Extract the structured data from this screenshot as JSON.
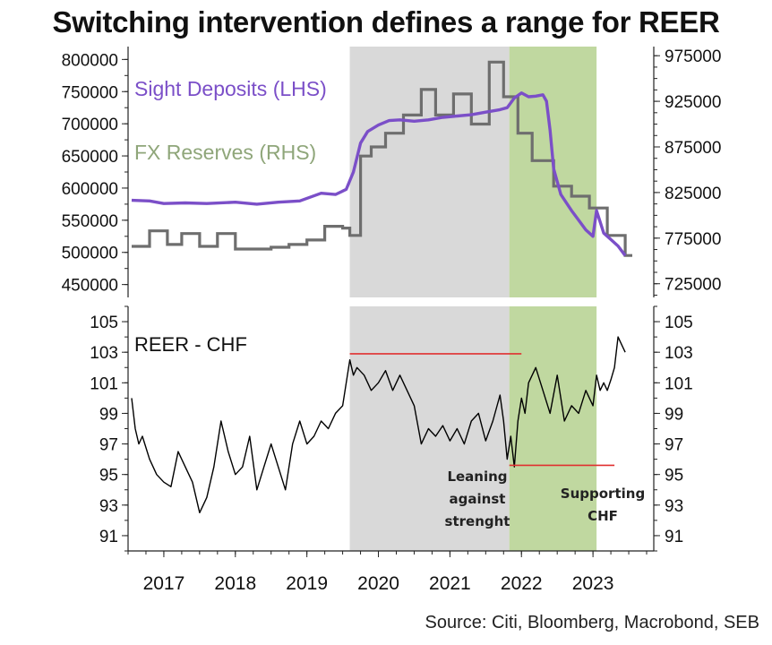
{
  "title": "Switching intervention defines a range for REER",
  "source": "Source: Citi, Bloomberg, Macrobond, SEB",
  "colors": {
    "sight": "#7b4fc8",
    "fx": "#6e6e6e",
    "reer": "#000000",
    "shade_grey": "#d9d9d9",
    "shade_green": "#c0d8a0",
    "range_line": "#e03030"
  },
  "chart_data": [
    {
      "type": "line",
      "title": "Switching intervention defines a range for REER",
      "x_ticks": [
        "2017",
        "2018",
        "2019",
        "2020",
        "2021",
        "2022",
        "2023"
      ],
      "x_tick_positions": [
        2017.0,
        2018.0,
        2019.0,
        2020.0,
        2021.0,
        2022.0,
        2023.0
      ],
      "xlim": [
        2016.5,
        2023.85
      ],
      "left_axis": {
        "ylim": [
          430000,
          820000
        ],
        "ticks": [
          "800000",
          "750000",
          "700000",
          "650000",
          "600000",
          "550000",
          "500000",
          "450000"
        ],
        "tick_values": [
          800000,
          750000,
          700000,
          650000,
          600000,
          550000,
          500000,
          450000
        ]
      },
      "right_axis": {
        "ylim": [
          710000,
          985000
        ],
        "ticks": [
          "975000",
          "925000",
          "875000",
          "825000",
          "775000",
          "725000"
        ],
        "tick_values": [
          975000,
          925000,
          875000,
          825000,
          775000,
          725000
        ]
      },
      "shaded_periods": [
        {
          "name": "Leaning against strenght",
          "from": 2019.6,
          "to": 2021.83,
          "color": "grey"
        },
        {
          "name": "Supporting CHF",
          "from": 2021.83,
          "to": 2023.05,
          "color": "green"
        }
      ],
      "series": [
        {
          "name": "Sight Deposits (LHS)",
          "axis": "left",
          "x": [
            2016.55,
            2016.8,
            2017.0,
            2017.3,
            2017.6,
            2018.0,
            2018.3,
            2018.6,
            2018.9,
            2019.2,
            2019.4,
            2019.55,
            2019.65,
            2019.75,
            2019.85,
            2020.0,
            2020.15,
            2020.3,
            2020.5,
            2020.7,
            2020.9,
            2021.1,
            2021.3,
            2021.5,
            2021.7,
            2021.8,
            2021.9,
            2022.0,
            2022.1,
            2022.2,
            2022.3,
            2022.35,
            2022.4,
            2022.45,
            2022.55,
            2022.7,
            2022.8,
            2022.9,
            2022.95,
            2023.0,
            2023.05,
            2023.15,
            2023.25,
            2023.35,
            2023.45
          ],
          "values": [
            581000,
            580000,
            576000,
            577000,
            576000,
            578000,
            575000,
            578000,
            580000,
            592000,
            590000,
            598000,
            625000,
            670000,
            688000,
            698000,
            705000,
            706000,
            704000,
            706000,
            710000,
            712000,
            714000,
            718000,
            722000,
            725000,
            740000,
            748000,
            742000,
            743000,
            745000,
            735000,
            690000,
            630000,
            590000,
            565000,
            550000,
            535000,
            530000,
            525000,
            565000,
            530000,
            520000,
            510000,
            495000
          ]
        },
        {
          "name": "FX Reserves (RHS)",
          "axis": "right",
          "x": [
            2016.55,
            2016.8,
            2017.05,
            2017.25,
            2017.5,
            2017.75,
            2018.0,
            2018.25,
            2018.5,
            2018.75,
            2019.0,
            2019.25,
            2019.5,
            2019.6,
            2019.75,
            2019.9,
            2020.1,
            2020.35,
            2020.6,
            2020.8,
            2021.05,
            2021.3,
            2021.55,
            2021.75,
            2021.95,
            2022.15,
            2022.45,
            2022.7,
            2022.95,
            2023.2,
            2023.45
          ],
          "values": [
            766000,
            783000,
            768000,
            780000,
            766000,
            780000,
            763000,
            763000,
            765000,
            768000,
            773000,
            788000,
            786000,
            778000,
            865000,
            875000,
            890000,
            910000,
            938000,
            910000,
            933000,
            900000,
            968000,
            930000,
            890000,
            860000,
            832000,
            821000,
            808000,
            778000,
            756000
          ]
        },
        {
          "name": "REER - CHF",
          "axis": "bottom",
          "ylim": [
            90,
            106
          ],
          "ticks": [
            "105",
            "103",
            "101",
            "99",
            "97",
            "95",
            "93",
            "91"
          ],
          "tick_values": [
            105,
            103,
            101,
            99,
            97,
            95,
            93,
            91
          ],
          "x": [
            2016.55,
            2016.6,
            2016.65,
            2016.7,
            2016.8,
            2016.9,
            2017.0,
            2017.1,
            2017.2,
            2017.3,
            2017.4,
            2017.5,
            2017.6,
            2017.7,
            2017.8,
            2017.9,
            2018.0,
            2018.1,
            2018.2,
            2018.3,
            2018.4,
            2018.5,
            2018.6,
            2018.7,
            2018.8,
            2018.9,
            2019.0,
            2019.1,
            2019.2,
            2019.3,
            2019.4,
            2019.5,
            2019.6,
            2019.65,
            2019.7,
            2019.8,
            2019.9,
            2020.0,
            2020.1,
            2020.2,
            2020.3,
            2020.4,
            2020.5,
            2020.6,
            2020.7,
            2020.8,
            2020.9,
            2021.0,
            2021.1,
            2021.2,
            2021.3,
            2021.4,
            2021.5,
            2021.6,
            2021.7,
            2021.75,
            2021.8,
            2021.85,
            2021.9,
            2021.95,
            2022.0,
            2022.05,
            2022.1,
            2022.2,
            2022.3,
            2022.4,
            2022.5,
            2022.6,
            2022.7,
            2022.8,
            2022.9,
            2023.0,
            2023.05,
            2023.1,
            2023.15,
            2023.2,
            2023.25,
            2023.3,
            2023.35,
            2023.4,
            2023.45
          ],
          "values": [
            100.0,
            98.0,
            97.0,
            97.5,
            96.0,
            95.0,
            94.5,
            94.2,
            96.5,
            95.5,
            94.5,
            92.5,
            93.5,
            95.5,
            98.5,
            96.5,
            95.0,
            95.5,
            97.5,
            94.0,
            95.5,
            97.0,
            95.5,
            94.0,
            97.0,
            98.5,
            97.0,
            97.5,
            98.5,
            98.0,
            99.0,
            99.5,
            102.5,
            101.5,
            102.0,
            101.5,
            100.5,
            101.0,
            101.8,
            100.5,
            101.5,
            100.5,
            99.5,
            97.0,
            98.0,
            97.5,
            98.2,
            97.2,
            98.0,
            97.0,
            98.5,
            99.0,
            97.2,
            98.5,
            100.2,
            98.5,
            96.0,
            97.5,
            95.5,
            98.5,
            100.0,
            99.0,
            101.0,
            102.0,
            100.5,
            99.0,
            101.5,
            98.5,
            99.5,
            99.0,
            100.5,
            99.5,
            101.5,
            100.5,
            101.0,
            100.5,
            101.2,
            102.0,
            104.0,
            103.5,
            103.0
          ]
        }
      ],
      "reference_lines": [
        {
          "name": "upper-range",
          "value": 102.9,
          "from": 2019.6,
          "to": 2022.0
        },
        {
          "name": "lower-range",
          "value": 95.6,
          "from": 2021.83,
          "to": 2023.3
        }
      ],
      "annotations": [
        {
          "lines": [
            "Leaning",
            "against",
            "strenght"
          ]
        },
        {
          "lines": [
            "Supporting",
            "CHF"
          ]
        }
      ]
    }
  ]
}
